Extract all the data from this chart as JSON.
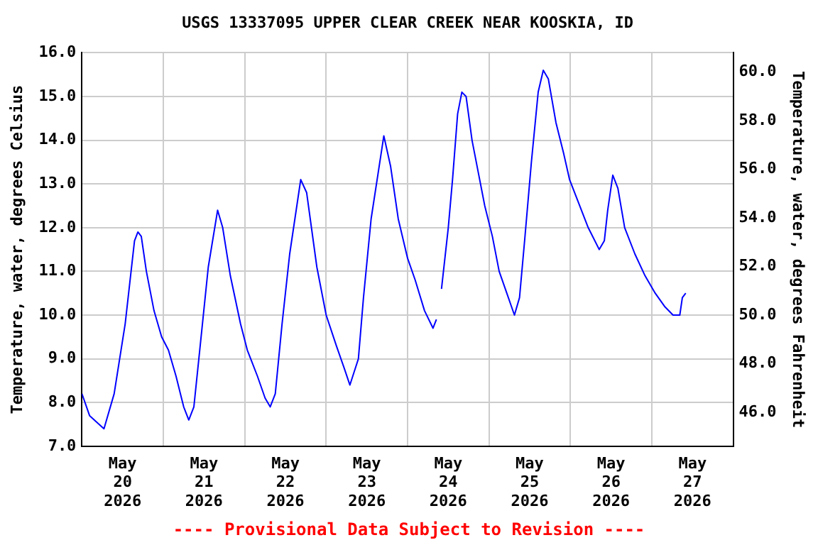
{
  "chart_data": {
    "type": "line",
    "title": "USGS 13337095 UPPER CLEAR CREEK NEAR KOOSKIA, ID",
    "ylabel": "Temperature, water, degrees Celsius",
    "y2label": "Temperature, water, degrees Fahrenheit",
    "annotations": [
      "---- Provisional Data Subject to Revision ----"
    ],
    "x": [
      "2026-05-20T00:00",
      "2026-05-20T02:15",
      "2026-05-20T06:30",
      "2026-05-20T09:30",
      "2026-05-20T12:45",
      "2026-05-20T15:30",
      "2026-05-20T16:30",
      "2026-05-20T17:30",
      "2026-05-20T19:00",
      "2026-05-20T21:15",
      "2026-05-20T23:30",
      "2026-05-21T01:30",
      "2026-05-21T03:45",
      "2026-05-21T06:00",
      "2026-05-21T07:30",
      "2026-05-21T09:00",
      "2026-05-21T11:00",
      "2026-05-21T13:15",
      "2026-05-21T16:00",
      "2026-05-21T17:30",
      "2026-05-21T19:45",
      "2026-05-21T22:45",
      "2026-05-22T00:45",
      "2026-05-22T03:45",
      "2026-05-22T06:00",
      "2026-05-22T07:30",
      "2026-05-22T09:00",
      "2026-05-22T11:00",
      "2026-05-22T13:15",
      "2026-05-22T16:30",
      "2026-05-22T18:15",
      "2026-05-22T21:15",
      "2026-05-23T00:00",
      "2026-05-23T03:00",
      "2026-05-23T05:15",
      "2026-05-23T07:00",
      "2026-05-23T09:30",
      "2026-05-23T11:00",
      "2026-05-23T13:15",
      "2026-05-23T17:00",
      "2026-05-23T19:00",
      "2026-05-23T21:15",
      "2026-05-24T00:00",
      "2026-05-24T02:15",
      "2026-05-24T05:00",
      "2026-05-24T07:30",
      "2026-05-24T08:30",
      "2026-05-24T09:00",
      "2026-05-24T10:00",
      "2026-05-24T12:00",
      "2026-05-24T13:15",
      "2026-05-24T14:45",
      "2026-05-24T16:00",
      "2026-05-24T17:15",
      "2026-05-24T19:00",
      "2026-05-24T21:00",
      "2026-05-24T22:45",
      "2026-05-25T01:00",
      "2026-05-25T03:00",
      "2026-05-25T05:15",
      "2026-05-25T07:30",
      "2026-05-25T09:00",
      "2026-05-25T10:30",
      "2026-05-25T12:30",
      "2026-05-25T14:30",
      "2026-05-25T16:00",
      "2026-05-25T17:30",
      "2026-05-25T19:45",
      "2026-05-25T22:00",
      "2026-05-25T23:45",
      "2026-05-26T02:15",
      "2026-05-26T05:15",
      "2026-05-26T08:30",
      "2026-05-26T10:00",
      "2026-05-26T11:00",
      "2026-05-26T12:30",
      "2026-05-26T14:00",
      "2026-05-26T16:00",
      "2026-05-26T19:00",
      "2026-05-26T22:00",
      "2026-05-27T01:00",
      "2026-05-27T03:45",
      "2026-05-27T06:15",
      "2026-05-27T08:15",
      "2026-05-27T09:00",
      "2026-05-27T10:00"
    ],
    "series": [
      {
        "color": "#0000ff",
        "values": [
          8.2,
          7.7,
          7.4,
          8.2,
          9.8,
          11.7,
          11.9,
          11.8,
          11.0,
          10.1,
          9.5,
          9.2,
          8.6,
          7.9,
          7.6,
          7.9,
          9.4,
          11.1,
          12.4,
          12.0,
          10.9,
          9.8,
          9.2,
          8.6,
          8.1,
          7.9,
          8.2,
          9.8,
          11.4,
          13.1,
          12.8,
          11.1,
          10.0,
          9.3,
          8.8,
          8.4,
          9.0,
          10.4,
          12.2,
          14.1,
          13.4,
          12.2,
          11.3,
          10.8,
          10.1,
          9.7,
          9.9,
          null,
          10.6,
          12.0,
          13.1,
          14.6,
          15.1,
          15.0,
          14.0,
          13.2,
          12.5,
          11.8,
          11.0,
          10.5,
          10.0,
          10.4,
          11.7,
          13.5,
          15.1,
          15.6,
          15.4,
          14.4,
          13.7,
          13.1,
          12.6,
          12.0,
          11.5,
          11.7,
          12.4,
          13.2,
          12.9,
          12.0,
          11.4,
          10.9,
          10.5,
          10.2,
          10.0,
          10.0,
          10.4,
          10.5
        ]
      }
    ],
    "xlim": [
      "2026-05-20T00:00",
      "2026-05-28T00:00"
    ],
    "xticks": [
      {
        "value": "2026-05-20T12:00",
        "label": "May\n20\n2026"
      },
      {
        "value": "2026-05-21T00:00",
        "label": null
      },
      {
        "value": "2026-05-21T12:00",
        "label": "May\n21\n2026"
      },
      {
        "value": "2026-05-22T00:00",
        "label": null
      },
      {
        "value": "2026-05-22T12:00",
        "label": "May\n22\n2026"
      },
      {
        "value": "2026-05-23T00:00",
        "label": null
      },
      {
        "value": "2026-05-23T12:00",
        "label": "May\n23\n2026"
      },
      {
        "value": "2026-05-24T00:00",
        "label": null
      },
      {
        "value": "2026-05-24T12:00",
        "label": "May\n24\n2026"
      },
      {
        "value": "2026-05-25T00:00",
        "label": null
      },
      {
        "value": "2026-05-25T12:00",
        "label": "May\n25\n2026"
      },
      {
        "value": "2026-05-26T00:00",
        "label": null
      },
      {
        "value": "2026-05-26T12:00",
        "label": "May\n26\n2026"
      },
      {
        "value": "2026-05-27T00:00",
        "label": null
      },
      {
        "value": "2026-05-27T12:00",
        "label": "May\n27\n2026"
      }
    ],
    "ylim": [
      7,
      16
    ],
    "yticks": [
      {
        "value": 7,
        "label": "7.0"
      },
      {
        "value": 8,
        "label": "8.0"
      },
      {
        "value": 9,
        "label": "9.0"
      },
      {
        "value": 10,
        "label": "10.0"
      },
      {
        "value": 11,
        "label": "11.0"
      },
      {
        "value": 12,
        "label": "12.0"
      },
      {
        "value": 13,
        "label": "13.0"
      },
      {
        "value": 14,
        "label": "14.0"
      },
      {
        "value": 15,
        "label": "15.0"
      },
      {
        "value": 16,
        "label": "16.0"
      }
    ],
    "y2lim": [
      44.6,
      60.8
    ],
    "y2ticks": [
      {
        "value": 46,
        "label": "46.0"
      },
      {
        "value": 48,
        "label": "48.0"
      },
      {
        "value": 50,
        "label": "50.0"
      },
      {
        "value": 52,
        "label": "52.0"
      },
      {
        "value": 54,
        "label": "54.0"
      },
      {
        "value": 56,
        "label": "56.0"
      },
      {
        "value": 58,
        "label": "58.0"
      },
      {
        "value": 60,
        "label": "60.0"
      }
    ],
    "grid": true,
    "legend": false,
    "marker": "none",
    "line_style": "solid"
  }
}
